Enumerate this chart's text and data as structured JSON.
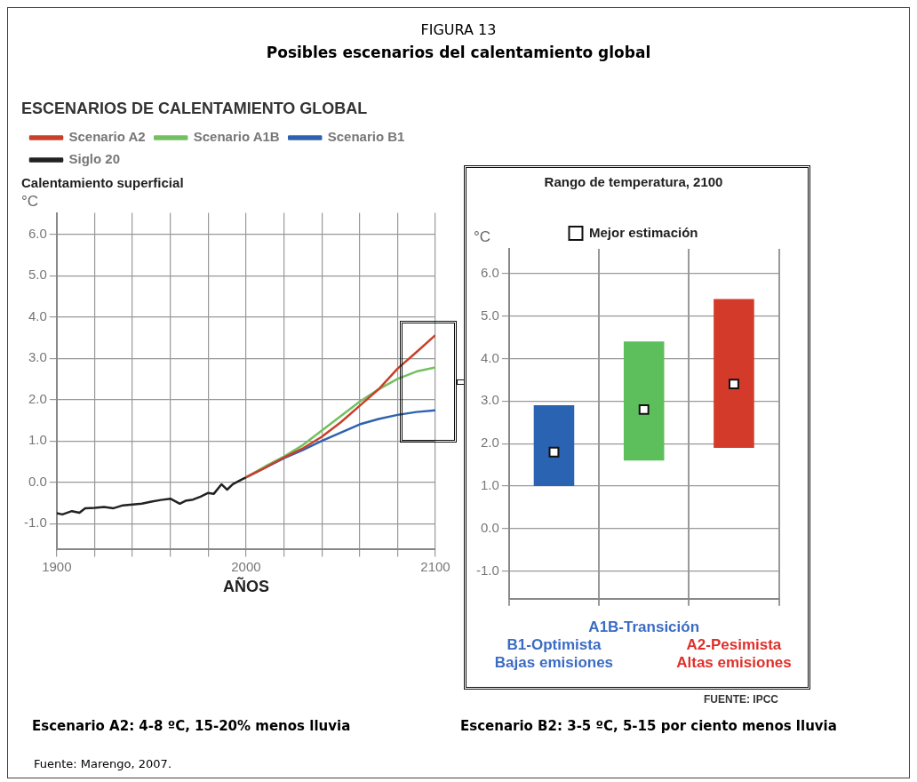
{
  "chart_data": [
    {
      "type": "other",
      "title": "FIGURA 13",
      "subtitle": "Posibles escenarios del calentamiento global"
    },
    {
      "type": "line",
      "title": "ESCENARIOS DE CALENTAMIENTO GLOBAL",
      "subtitle": "Calentamiento superficial",
      "xlabel": "AÑOS",
      "ylabel": "°C",
      "xlim": [
        1900,
        2100
      ],
      "xticks": [
        1900,
        {
          "value": 1920,
          "label": null
        },
        {
          "value": 1940,
          "label": null
        },
        {
          "value": 1960,
          "label": null
        },
        {
          "value": 1980,
          "label": null
        },
        2000,
        {
          "value": 2020,
          "label": null
        },
        {
          "value": 2040,
          "label": null
        },
        {
          "value": 2060,
          "label": null
        },
        {
          "value": 2080,
          "label": null
        },
        2100
      ],
      "ylim": [
        -1.63,
        6.52
      ],
      "yticks": [
        {
          "value": -1,
          "label": "-1.0"
        },
        {
          "value": 0,
          "label": "0.0"
        },
        {
          "value": 1,
          "label": "1.0"
        },
        {
          "value": 2,
          "label": "2.0"
        },
        {
          "value": 3,
          "label": "3.0"
        },
        {
          "value": 4,
          "label": "4.0"
        },
        {
          "value": 5,
          "label": "5.0"
        },
        {
          "value": 6,
          "label": "6.0"
        }
      ],
      "grid": true,
      "legend": "top",
      "marker": "none",
      "line_style": "solid",
      "series": [
        {
          "name": "Scenario A2",
          "color": "#c8402a",
          "x": [
            2000,
            2010,
            2020,
            2030,
            2040,
            2050,
            2060,
            2070,
            2080,
            2090,
            2100
          ],
          "values": [
            0.12,
            0.35,
            0.6,
            0.82,
            1.1,
            1.45,
            1.85,
            2.25,
            2.75,
            3.15,
            3.56
          ]
        },
        {
          "name": "Scenario A1B",
          "color": "#72c060",
          "x": [
            2000,
            2010,
            2020,
            2030,
            2040,
            2050,
            2060,
            2070,
            2080,
            2090,
            2100
          ],
          "values": [
            0.12,
            0.38,
            0.62,
            0.9,
            1.25,
            1.6,
            1.95,
            2.25,
            2.5,
            2.68,
            2.78
          ]
        },
        {
          "name": "Scenario B1",
          "color": "#2e62b0",
          "x": [
            2000,
            2010,
            2020,
            2030,
            2040,
            2050,
            2060,
            2070,
            2080,
            2090,
            2100
          ],
          "values": [
            0.12,
            0.35,
            0.58,
            0.78,
            1.0,
            1.2,
            1.4,
            1.53,
            1.63,
            1.7,
            1.74
          ]
        },
        {
          "name": "Siglo 20",
          "color": "#222222",
          "x": [
            1900,
            1903,
            1908,
            1912,
            1915,
            1920,
            1925,
            1930,
            1935,
            1940,
            1945,
            1950,
            1955,
            1960,
            1965,
            1968,
            1972,
            1976,
            1980,
            1983,
            1987,
            1990,
            1993,
            1997,
            2000
          ],
          "values": [
            -0.75,
            -0.78,
            -0.7,
            -0.74,
            -0.63,
            -0.62,
            -0.6,
            -0.63,
            -0.56,
            -0.54,
            -0.52,
            -0.47,
            -0.43,
            -0.4,
            -0.52,
            -0.45,
            -0.42,
            -0.35,
            -0.26,
            -0.28,
            -0.05,
            -0.18,
            -0.05,
            0.05,
            0.12
          ]
        }
      ]
    },
    {
      "type": "bar",
      "title": "Rango de temperatura, 2100",
      "ylabel": "°C",
      "categories": [
        "B1-Optimista\nBajas emisiones",
        "A1B-Transición",
        "A2-Pesimista\nAltas emisiones"
      ],
      "ylim": [
        -1.65,
        6.58
      ],
      "yticks": [
        {
          "value": -1,
          "label": "-1.0"
        },
        {
          "value": 0,
          "label": "0.0"
        },
        {
          "value": 1,
          "label": "1.0"
        },
        {
          "value": 2,
          "label": "2.0"
        },
        {
          "value": 3,
          "label": "3.0"
        },
        {
          "value": 4,
          "label": "4.0"
        },
        {
          "value": 5,
          "label": "5.0"
        },
        {
          "value": 6,
          "label": "6.0"
        }
      ],
      "grid": true,
      "legend": "top",
      "series": [
        {
          "type": "bar",
          "colors": [
            "#2b63b3",
            "#5cbf5c",
            "#d33a2a"
          ],
          "base": [
            1.0,
            1.6,
            1.9
          ],
          "values": [
            1.9,
            2.8,
            3.5
          ]
        },
        {
          "type": "scatter",
          "name": "Mejor estimación",
          "color": "#ffffff",
          "marker": "square",
          "x": [
            "B1-Optimista\nBajas emisiones",
            "A1B-Transición",
            "A2-Pesimista\nAltas emisiones"
          ],
          "values": [
            1.8,
            2.8,
            3.4
          ]
        }
      ],
      "annotations": [
        "FUENTE: IPCC"
      ]
    },
    {
      "type": "other",
      "annotations": [
        "Escenario A2: 4-8 ºC, 15-20% menos lluvia",
        "Escenario B2: 3-5 ºC, 5-15 por ciento menos lluvia",
        "Fuente: Marengo, 2007."
      ]
    }
  ]
}
